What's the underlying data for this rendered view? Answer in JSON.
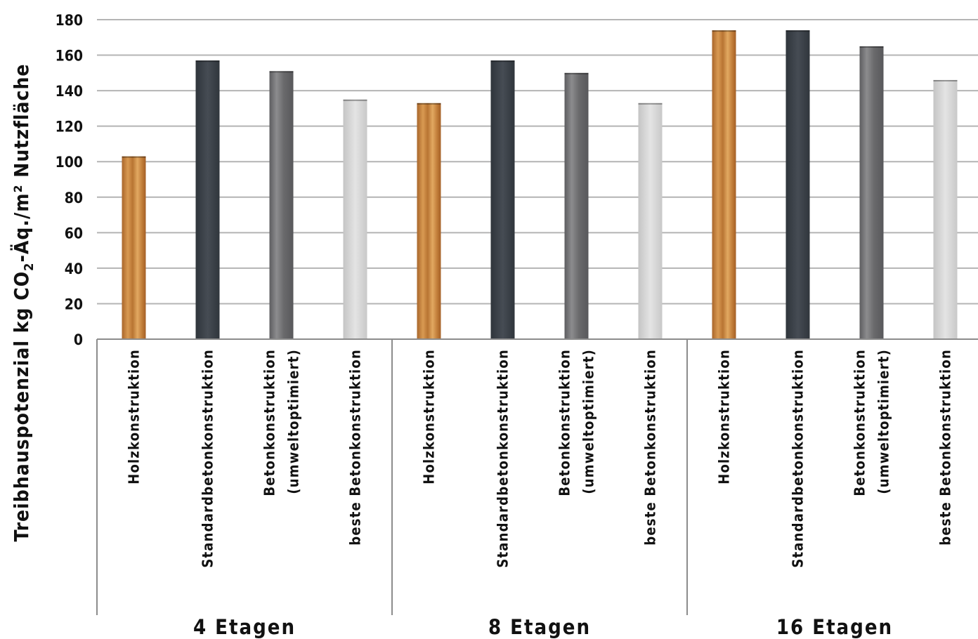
{
  "chart_data": {
    "type": "bar",
    "ylabel_parts": [
      "Treibhauspotenzial kg CO",
      "2",
      "-Äq./m² Nutzfläche"
    ],
    "ylim": [
      0,
      180
    ],
    "yticks": [
      0,
      20,
      40,
      60,
      80,
      100,
      120,
      140,
      160,
      180
    ],
    "grid": true,
    "groups": [
      {
        "label": "4 Etagen",
        "bars": [
          {
            "label": [
              "Holzkonstruktion"
            ],
            "value": 103,
            "style": "holz"
          },
          {
            "label": [
              "Standardbetonkonstruktion"
            ],
            "value": 157,
            "style": "standard"
          },
          {
            "label": [
              "Betonkonstruktion",
              "(umweltoptimiert)"
            ],
            "value": 151,
            "style": "umwelt"
          },
          {
            "label": [
              "beste Betonkonstruktion"
            ],
            "value": 135,
            "style": "beste"
          }
        ]
      },
      {
        "label": "8 Etagen",
        "bars": [
          {
            "label": [
              "Holzkonstruktion"
            ],
            "value": 133,
            "style": "holz"
          },
          {
            "label": [
              "Standardbetonkonstruktion"
            ],
            "value": 157,
            "style": "standard"
          },
          {
            "label": [
              "Betonkonstruktion",
              "(umweltoptimiert)"
            ],
            "value": 150,
            "style": "umwelt"
          },
          {
            "label": [
              "beste Betonkonstruktion"
            ],
            "value": 133,
            "style": "beste"
          }
        ]
      },
      {
        "label": "16 Etagen",
        "bars": [
          {
            "label": [
              "Holzkonstruktion"
            ],
            "value": 174,
            "style": "holz"
          },
          {
            "label": [
              "Standardbetonkonstruktion"
            ],
            "value": 174,
            "style": "standard"
          },
          {
            "label": [
              "Betonkonstruktion",
              "(umweltoptimiert)"
            ],
            "value": 165,
            "style": "umwelt"
          },
          {
            "label": [
              "beste Betonkonstruktion"
            ],
            "value": 146,
            "style": "beste"
          }
        ]
      }
    ],
    "colors": {
      "holz": "#c8813a",
      "standard": "#3c4249",
      "umwelt": "#747476",
      "beste": "#d2d2d2",
      "grid": "#b4b4b4",
      "axis": "#8c8c8c"
    }
  }
}
